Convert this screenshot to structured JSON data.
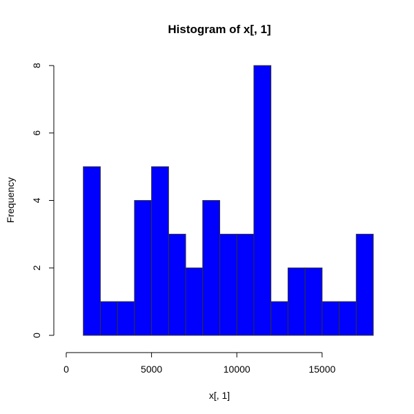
{
  "chart_data": {
    "type": "bar",
    "subtype": "histogram",
    "title": "Histogram of x[, 1]",
    "xlabel": "x[, 1]",
    "ylabel": "Frequency",
    "bar_color": "#0000ff",
    "border_color": "#333333",
    "grid": false,
    "xlim": [
      0,
      18000
    ],
    "ylim": [
      0,
      8
    ],
    "x_ticks": [
      0,
      5000,
      10000,
      15000
    ],
    "x_tick_labels": [
      "0",
      "5000",
      "10000",
      "15000"
    ],
    "y_ticks": [
      0,
      2,
      4,
      6,
      8
    ],
    "y_tick_labels": [
      "0",
      "2",
      "4",
      "6",
      "8"
    ],
    "bin_edges": [
      1000,
      2000,
      3000,
      4000,
      5000,
      6000,
      7000,
      8000,
      9000,
      10000,
      11000,
      12000,
      13000,
      14000,
      15000,
      16000,
      17000,
      18000
    ],
    "values": [
      5,
      1,
      1,
      4,
      5,
      3,
      2,
      4,
      3,
      3,
      8,
      1,
      2,
      2,
      1,
      1,
      3
    ]
  }
}
